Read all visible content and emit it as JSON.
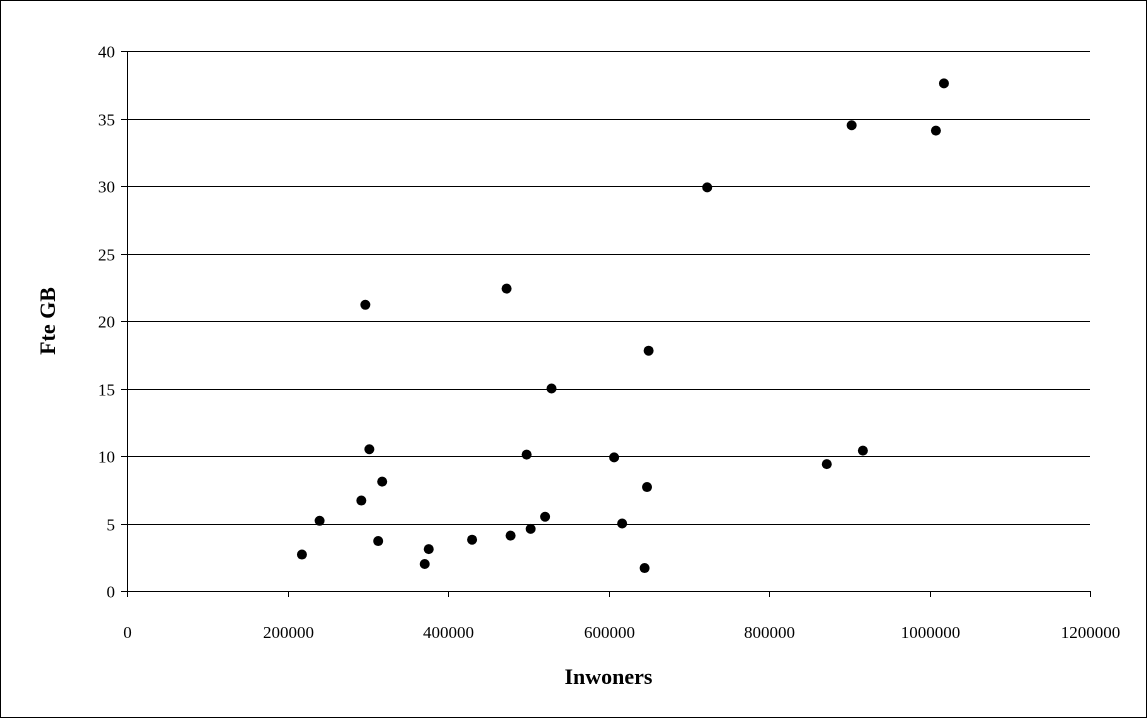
{
  "chart_data": {
    "type": "scatter",
    "title": "",
    "xlabel": "Inwoners",
    "ylabel": "Fte GB",
    "xlim": [
      0,
      1200000
    ],
    "ylim": [
      0,
      40
    ],
    "x_ticks": [
      "0",
      "200000",
      "400000",
      "600000",
      "800000",
      "1000000",
      "1200000"
    ],
    "y_ticks": [
      "0",
      "5",
      "10",
      "15",
      "20",
      "25",
      "30",
      "35",
      "40"
    ],
    "grid": "horizontal",
    "legend": "none",
    "marker_color": "#000000",
    "series": [
      {
        "points": [
          {
            "x": 218000,
            "y": 2.7
          },
          {
            "x": 240000,
            "y": 5.2
          },
          {
            "x": 292000,
            "y": 6.7
          },
          {
            "x": 297000,
            "y": 21.2
          },
          {
            "x": 302000,
            "y": 10.5
          },
          {
            "x": 313000,
            "y": 3.7
          },
          {
            "x": 318000,
            "y": 8.1
          },
          {
            "x": 371000,
            "y": 2.0
          },
          {
            "x": 376000,
            "y": 3.1
          },
          {
            "x": 430000,
            "y": 3.8
          },
          {
            "x": 473000,
            "y": 22.4
          },
          {
            "x": 478000,
            "y": 4.1
          },
          {
            "x": 498000,
            "y": 10.1
          },
          {
            "x": 503000,
            "y": 4.6
          },
          {
            "x": 521000,
            "y": 5.5
          },
          {
            "x": 529000,
            "y": 15.0
          },
          {
            "x": 607000,
            "y": 9.9
          },
          {
            "x": 617000,
            "y": 5.0
          },
          {
            "x": 645000,
            "y": 1.7
          },
          {
            "x": 648000,
            "y": 7.7
          },
          {
            "x": 650000,
            "y": 17.8
          },
          {
            "x": 723000,
            "y": 29.9
          },
          {
            "x": 872000,
            "y": 9.4
          },
          {
            "x": 903000,
            "y": 34.5
          },
          {
            "x": 917000,
            "y": 10.4
          },
          {
            "x": 1008000,
            "y": 34.1
          },
          {
            "x": 1018000,
            "y": 37.6
          }
        ]
      }
    ]
  }
}
